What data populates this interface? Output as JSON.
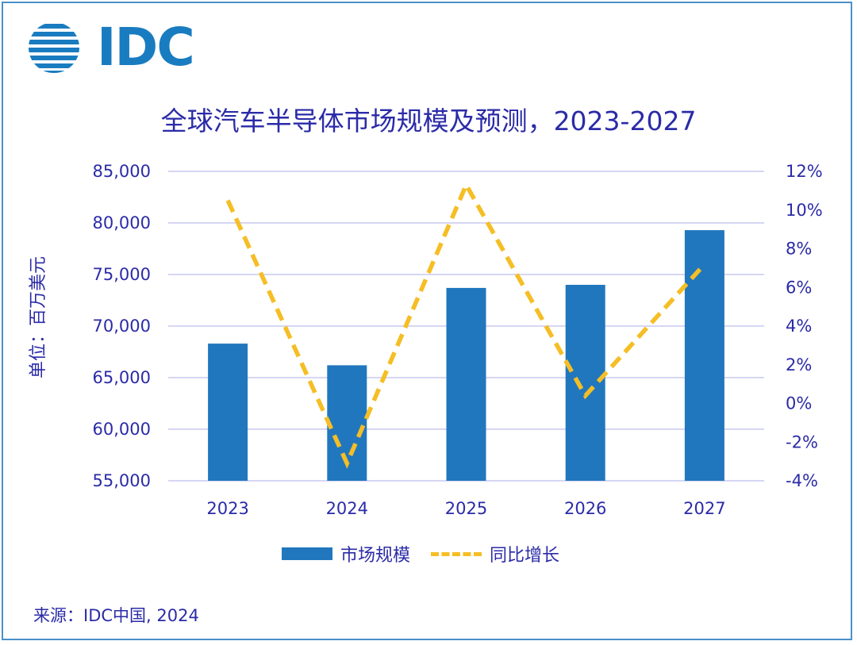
{
  "logo": {
    "text": "IDC",
    "color": "#1a7cc0"
  },
  "title": "全球汽车半导体市场规模及预测，2023-2027",
  "y_axis_label": "单位：百万美元",
  "source": "来源：IDC中国, 2024",
  "colors": {
    "bar": "#2177bd",
    "line": "#f5be25",
    "text": "#2b2ba8",
    "grid": "#c8c8f0"
  },
  "chart_data": {
    "type": "bar",
    "categories": [
      "2023",
      "2024",
      "2025",
      "2026",
      "2027"
    ],
    "series": [
      {
        "name": "市场规模",
        "type": "bar",
        "axis": "left",
        "values": [
          68300,
          66200,
          73700,
          74000,
          79300
        ]
      },
      {
        "name": "同比增长",
        "type": "line",
        "style": "dashed",
        "axis": "right",
        "values": [
          10.5,
          -3.1,
          11.3,
          0.4,
          7.2
        ]
      }
    ],
    "y_left": {
      "range": [
        55000,
        85000
      ],
      "ticks": [
        "55,000",
        "60,000",
        "65,000",
        "70,000",
        "75,000",
        "80,000",
        "85,000"
      ]
    },
    "y_right": {
      "range": [
        -4,
        12
      ],
      "ticks": [
        "-4%",
        "-2%",
        "0%",
        "2%",
        "4%",
        "6%",
        "8%",
        "10%",
        "12%"
      ]
    },
    "ylabel": "单位：百万美元",
    "grid": true,
    "legend_position": "bottom"
  }
}
